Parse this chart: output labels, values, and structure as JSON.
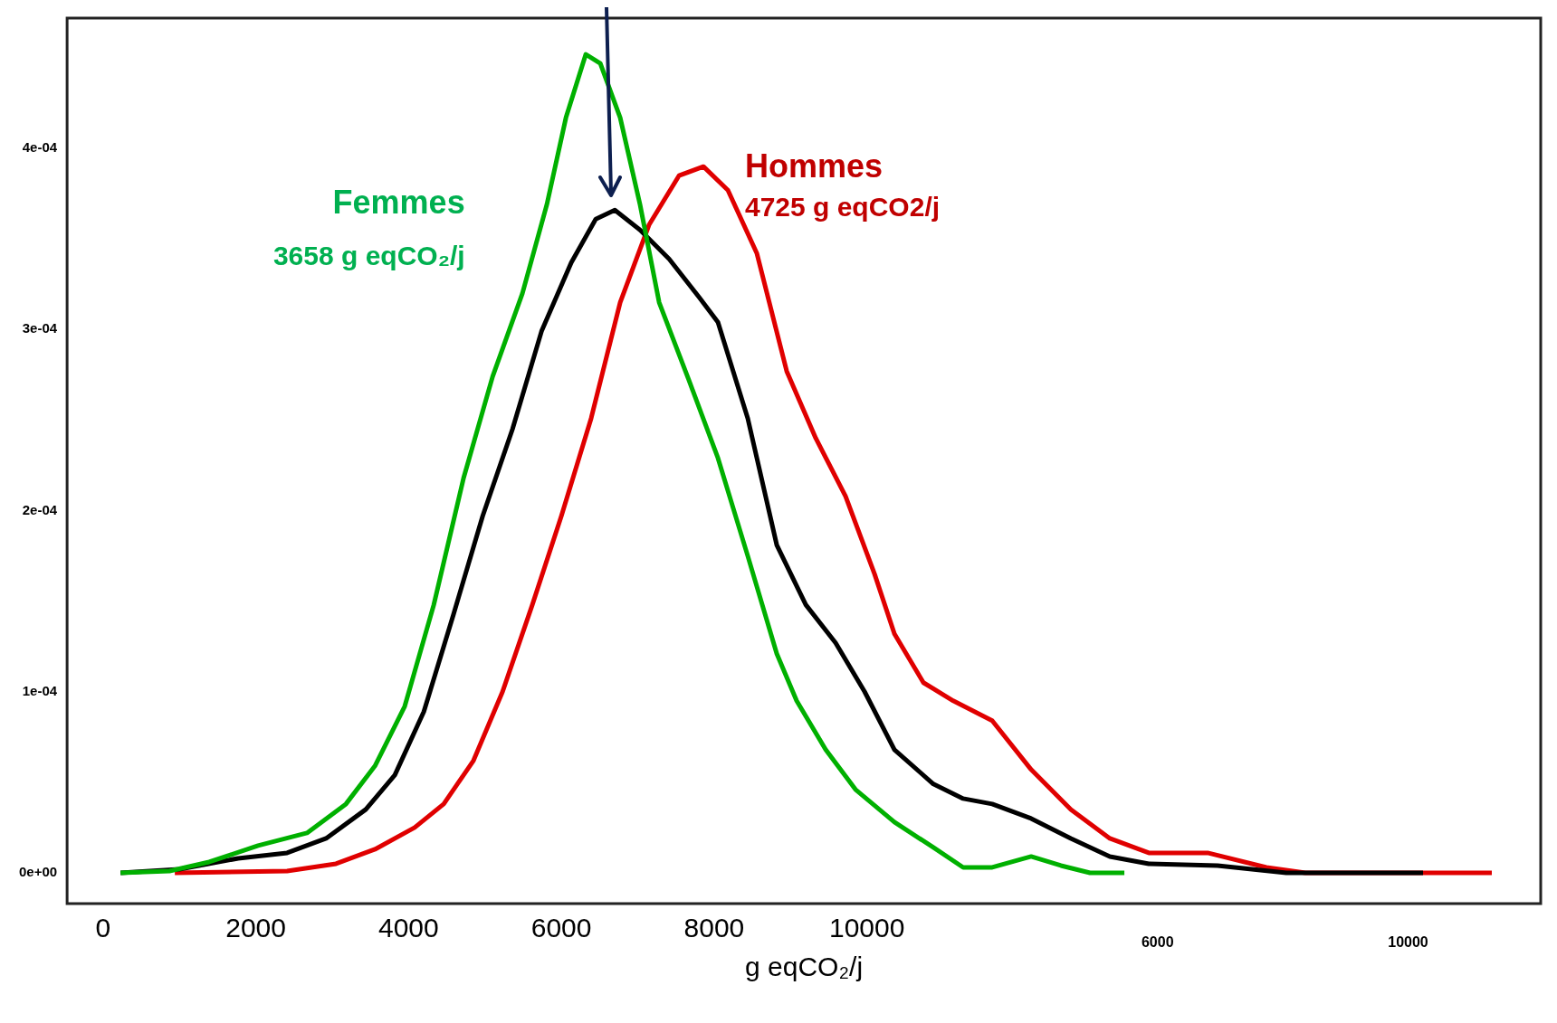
{
  "chart_data": {
    "type": "line",
    "xlabel": "g eqCO₂/j",
    "annotations": [
      "Femmes",
      "3658 g eqCO₂/j",
      "Hommes",
      "4725 g eqCO2/j",
      "6000",
      "10000"
    ],
    "xlim": [
      -470,
      18820
    ],
    "xticks": [
      0,
      2000,
      4000,
      6000,
      8000,
      10000
    ],
    "ylim": [
      -1.7e-05,
      0.000472
    ],
    "yticks": [
      {
        "value": 0,
        "label": "0e+00"
      },
      {
        "value": 0.0001,
        "label": "1e-04"
      },
      {
        "value": 0.0002,
        "label": "2e-04"
      },
      {
        "value": 0.0003,
        "label": "3e-04"
      },
      {
        "value": 0.0004,
        "label": "4e-04"
      }
    ],
    "grid": false,
    "legend": false,
    "marker": "none",
    "line_style": "solid",
    "series": [
      {
        "color": "#00b000",
        "x": [
          230,
          870,
          1390,
          2030,
          2670,
          3180,
          3560,
          3950,
          4330,
          4720,
          5100,
          5490,
          5810,
          6060,
          6320,
          6510,
          6770,
          7030,
          7280,
          7670,
          8050,
          8440,
          8820,
          9080,
          9460,
          9850,
          10360,
          10870,
          11260,
          11640,
          12150,
          12540,
          12920,
          13370
        ],
        "values": [
          0,
          1e-06,
          6e-06,
          1.5e-05,
          2.2e-05,
          3.8e-05,
          5.9e-05,
          9.2e-05,
          0.000148,
          0.000218,
          0.000274,
          0.00032,
          0.000369,
          0.000417,
          0.000452,
          0.000447,
          0.000417,
          0.000369,
          0.000315,
          0.000272,
          0.000229,
          0.000175,
          0.000121,
          9.5e-05,
          6.8e-05,
          4.6e-05,
          2.8e-05,
          1.4e-05,
          3e-06,
          3e-06,
          9e-06,
          4e-06,
          0,
          0
        ]
      },
      {
        "color": "#000000",
        "x": [
          230,
          1000,
          1770,
          2410,
          2920,
          3440,
          3820,
          4200,
          4590,
          4970,
          5360,
          5740,
          6130,
          6450,
          6700,
          7030,
          7410,
          7800,
          8050,
          8440,
          8820,
          9200,
          9590,
          9970,
          10360,
          10870,
          11260,
          11640,
          12150,
          12670,
          13180,
          13690,
          14590,
          15490,
          17280
        ],
        "values": [
          0,
          2e-06,
          8e-06,
          1.1e-05,
          1.9e-05,
          3.5e-05,
          5.4e-05,
          8.9e-05,
          0.000143,
          0.000197,
          0.000245,
          0.000299,
          0.000337,
          0.000361,
          0.000366,
          0.000355,
          0.000339,
          0.000318,
          0.000304,
          0.000251,
          0.000181,
          0.000148,
          0.000127,
          0.0001,
          6.8e-05,
          4.9e-05,
          4.1e-05,
          3.8e-05,
          3e-05,
          1.9e-05,
          9e-06,
          5e-06,
          4e-06,
          0,
          0
        ]
      },
      {
        "color": "#e00000",
        "x": [
          940,
          2410,
          3050,
          3560,
          4080,
          4460,
          4850,
          5230,
          5620,
          6000,
          6390,
          6770,
          7150,
          7540,
          7860,
          8180,
          8560,
          8950,
          9330,
          9720,
          10100,
          10360,
          10740,
          11130,
          11640,
          12150,
          12670,
          13180,
          13690,
          14460,
          15230,
          15740,
          18180
        ],
        "values": [
          0,
          1e-06,
          5e-06,
          1.3e-05,
          2.5e-05,
          3.8e-05,
          6.2e-05,
          0.0001,
          0.000148,
          0.000197,
          0.000251,
          0.000315,
          0.000358,
          0.000385,
          0.00039,
          0.000377,
          0.000342,
          0.000277,
          0.00024,
          0.000208,
          0.000165,
          0.000132,
          0.000105,
          9.5e-05,
          8.4e-05,
          5.7e-05,
          3.5e-05,
          1.9e-05,
          1.1e-05,
          1.1e-05,
          3e-06,
          0,
          0
        ]
      }
    ]
  }
}
